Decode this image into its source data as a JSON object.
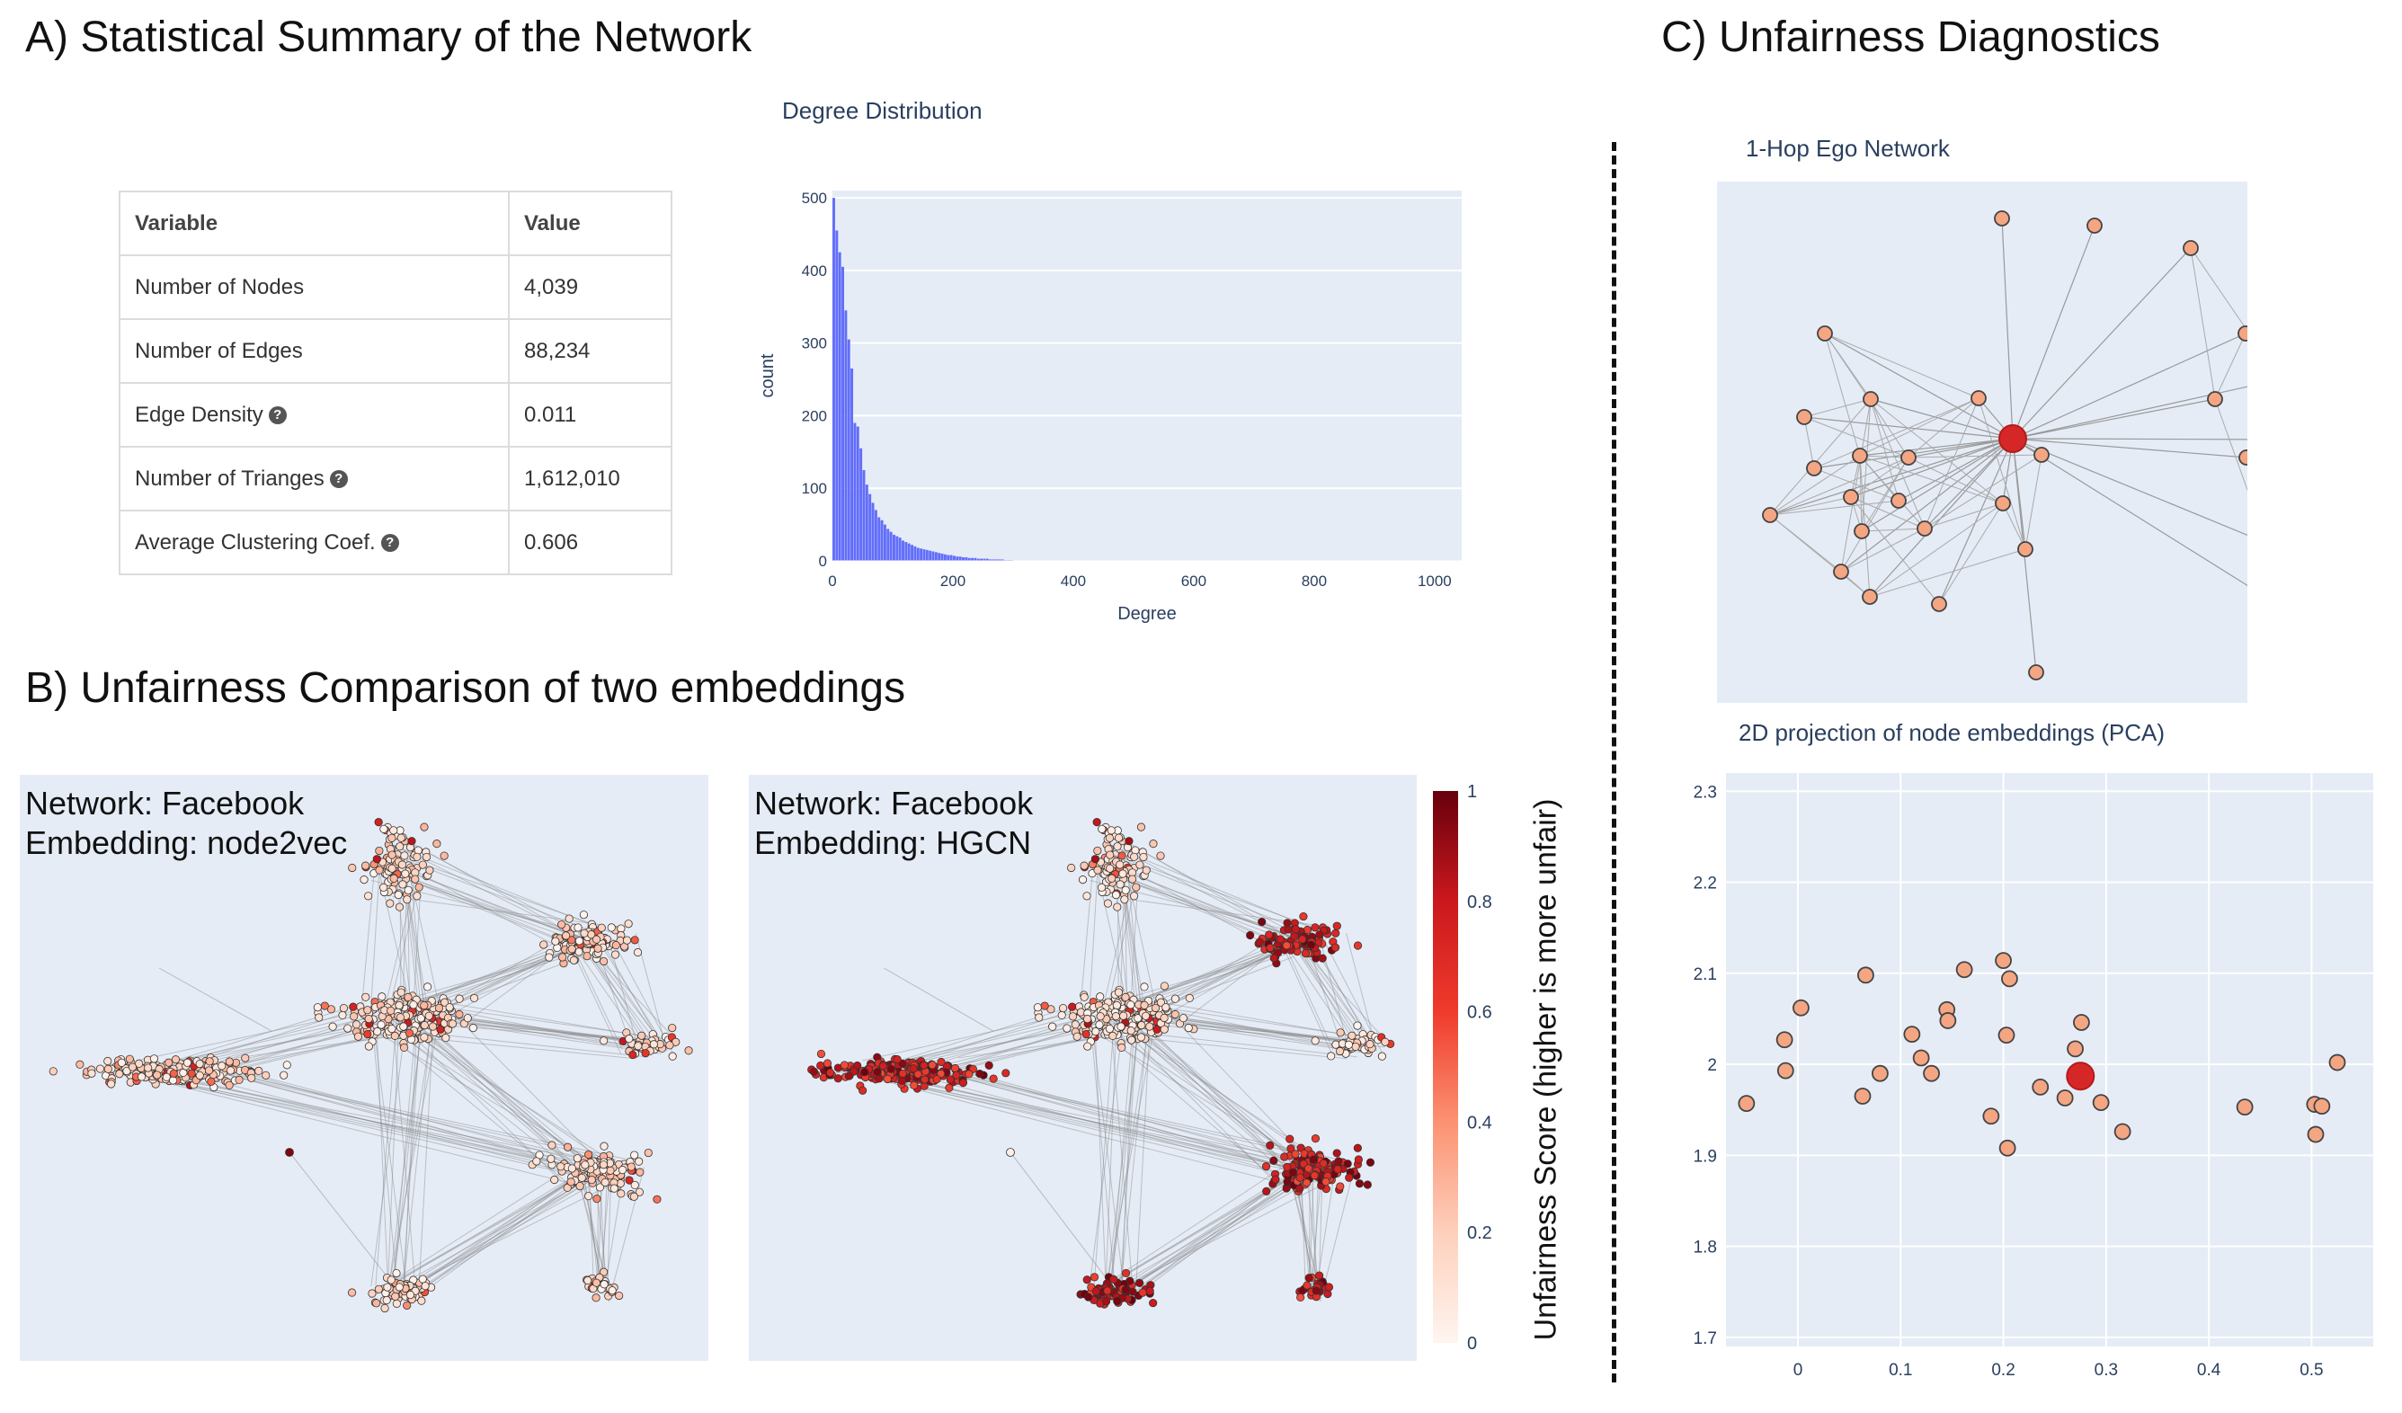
{
  "section_a": {
    "title": "A) Statistical Summary of the Network"
  },
  "section_b": {
    "title": "B) Unfairness Comparison of two embeddings"
  },
  "section_c": {
    "title": "C) Unfairness Diagnostics"
  },
  "stats_table": {
    "headers": [
      "Variable",
      "Value"
    ],
    "rows": [
      {
        "label": "Number of Nodes",
        "value": "4,039",
        "help": false
      },
      {
        "label": "Number of Edges",
        "value": "88,234",
        "help": false
      },
      {
        "label": "Edge Density",
        "value": "0.011",
        "help": true
      },
      {
        "label": "Number of Trianges",
        "value": "1,612,010",
        "help": true
      },
      {
        "label": "Average Clustering Coef.",
        "value": "0.606",
        "help": true
      }
    ]
  },
  "degree_chart": {
    "title": "Degree Distribution",
    "xlabel": "Degree",
    "ylabel": "count",
    "x_ticks": [
      0,
      200,
      400,
      600,
      800,
      1000
    ],
    "y_ticks": [
      0,
      100,
      200,
      300,
      400,
      500
    ],
    "xlim": [
      0,
      1045
    ],
    "ylim": [
      0,
      510
    ],
    "bar_color": "#636efa"
  },
  "networks": [
    {
      "network_line": "Network: Facebook",
      "embedding_line": "Embedding: node2vec",
      "mode": "low"
    },
    {
      "network_line": "Network: Facebook",
      "embedding_line": "Embedding: HGCN",
      "mode": "high"
    }
  ],
  "colorbar": {
    "title": "Unfairness Score (higher is more unfair)",
    "ticks": [
      "1",
      "0.8",
      "0.6",
      "0.4",
      "0.2",
      "0"
    ]
  },
  "ego_network": {
    "title": "1-Hop Ego Network",
    "node_color": "#f4a582",
    "focus_color": "#d62728"
  },
  "pca": {
    "title": "2D projection of node embeddings (PCA)",
    "x_ticks": [
      "0",
      "0.1",
      "0.2",
      "0.3",
      "0.4",
      "0.5"
    ],
    "y_ticks": [
      "2.3",
      "2.2",
      "2.1",
      "2",
      "1.9",
      "1.8",
      "1.7"
    ]
  },
  "chart_data": [
    {
      "type": "bar",
      "title": "Degree Distribution",
      "xlabel": "Degree",
      "ylabel": "count",
      "xlim": [
        0,
        1045
      ],
      "ylim": [
        0,
        510
      ],
      "bin_width": 5,
      "bin_starts": [
        0,
        5,
        10,
        15,
        20,
        25,
        30,
        35,
        40,
        45,
        50,
        55,
        60,
        65,
        70,
        75,
        80,
        85,
        90,
        95,
        100,
        105,
        110,
        115,
        120,
        125,
        130,
        135,
        140,
        145,
        150,
        155,
        160,
        165,
        170,
        175,
        180,
        185,
        190,
        195,
        200,
        205,
        210,
        215,
        220,
        225,
        230,
        235,
        240,
        245,
        250,
        255,
        260,
        265,
        270,
        275,
        280,
        285,
        290,
        295
      ],
      "values": [
        500,
        455,
        425,
        405,
        345,
        305,
        265,
        190,
        185,
        155,
        125,
        105,
        92,
        80,
        70,
        60,
        56,
        50,
        44,
        40,
        36,
        34,
        32,
        28,
        26,
        24,
        22,
        20,
        18,
        17,
        16,
        15,
        14,
        13,
        12,
        11,
        10,
        9,
        8,
        8,
        7,
        6,
        6,
        5,
        5,
        4,
        4,
        4,
        3,
        3,
        3,
        3,
        2,
        2,
        2,
        2,
        2,
        1,
        1,
        1
      ]
    },
    {
      "type": "scatter",
      "title": "2D projection of node embeddings (PCA)",
      "xlim": [
        -0.07,
        0.56
      ],
      "ylim": [
        1.69,
        2.32
      ],
      "points": [
        {
          "x": -0.05,
          "y": 1.957
        },
        {
          "x": -0.013,
          "y": 2.027
        },
        {
          "x": -0.012,
          "y": 1.993
        },
        {
          "x": 0.003,
          "y": 2.062
        },
        {
          "x": 0.063,
          "y": 1.965
        },
        {
          "x": 0.066,
          "y": 2.098
        },
        {
          "x": 0.08,
          "y": 1.99
        },
        {
          "x": 0.111,
          "y": 2.033
        },
        {
          "x": 0.12,
          "y": 2.007
        },
        {
          "x": 0.13,
          "y": 1.99
        },
        {
          "x": 0.145,
          "y": 2.06
        },
        {
          "x": 0.146,
          "y": 2.048
        },
        {
          "x": 0.162,
          "y": 2.104
        },
        {
          "x": 0.188,
          "y": 1.943
        },
        {
          "x": 0.2,
          "y": 2.114
        },
        {
          "x": 0.203,
          "y": 2.032
        },
        {
          "x": 0.204,
          "y": 1.908
        },
        {
          "x": 0.206,
          "y": 2.094
        },
        {
          "x": 0.236,
          "y": 1.975
        },
        {
          "x": 0.26,
          "y": 1.963
        },
        {
          "x": 0.27,
          "y": 2.017
        },
        {
          "x": 0.276,
          "y": 2.046
        },
        {
          "x": 0.295,
          "y": 1.958
        },
        {
          "x": 0.316,
          "y": 1.926
        },
        {
          "x": 0.435,
          "y": 1.953
        },
        {
          "x": 0.503,
          "y": 1.956
        },
        {
          "x": 0.51,
          "y": 1.954
        },
        {
          "x": 0.504,
          "y": 1.923
        },
        {
          "x": 0.525,
          "y": 2.002
        },
        {
          "x": 0.275,
          "y": 1.987,
          "focus": true
        }
      ]
    }
  ]
}
